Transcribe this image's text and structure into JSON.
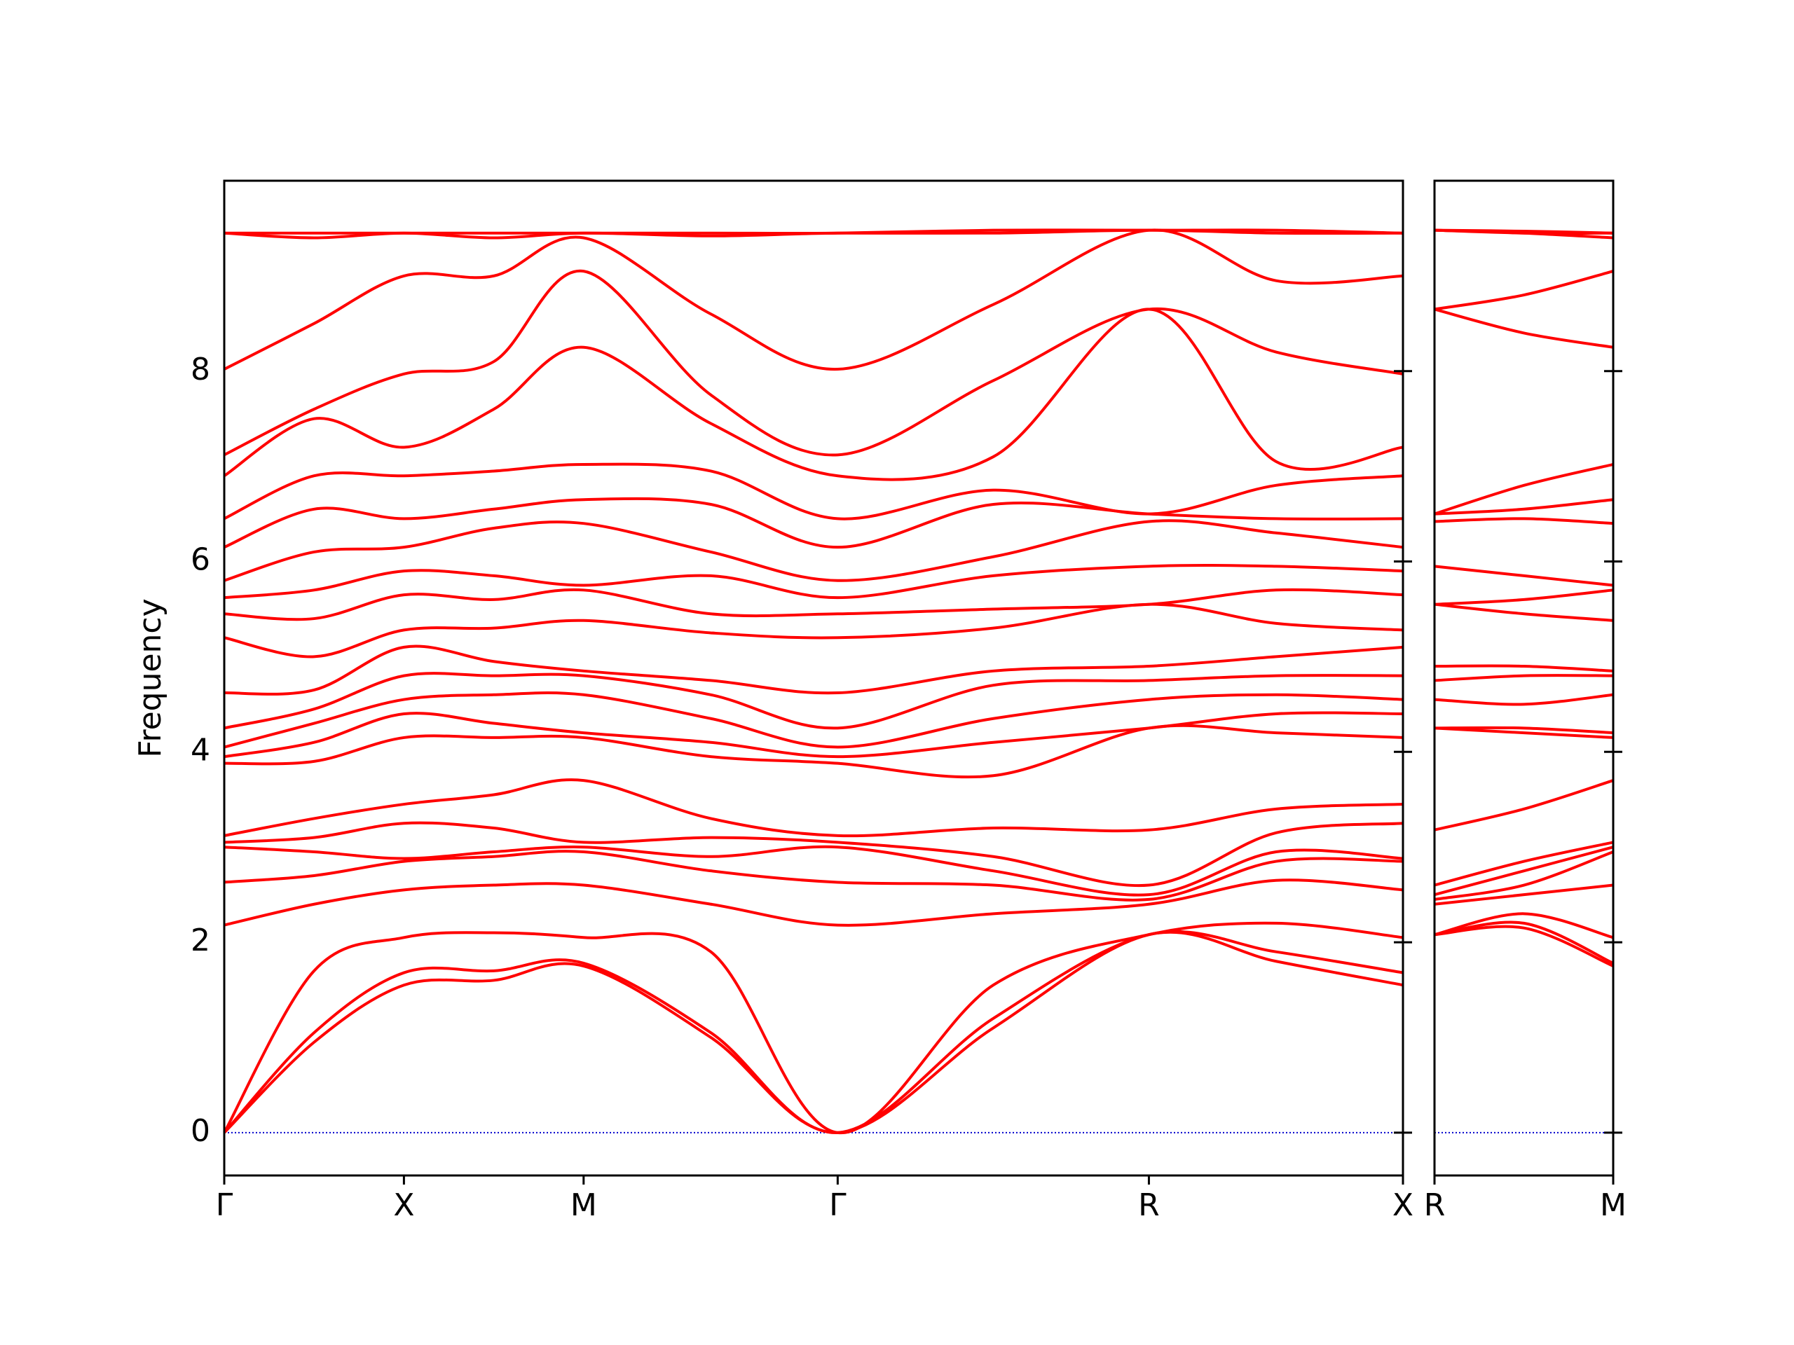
{
  "chart_data": [
    {
      "type": "line",
      "y_label": "Frequency",
      "color": "#ff0000",
      "x": [
        0,
        0.25,
        0.5,
        0.75,
        1.0,
        1.354,
        1.707,
        2.14,
        2.573,
        2.927,
        3.28
      ],
      "xlim": [
        0,
        3.28
      ],
      "xticks": [
        {
          "value": 0,
          "label": "Γ"
        },
        {
          "value": 0.5,
          "label": "X"
        },
        {
          "value": 1.0,
          "label": "M"
        },
        {
          "value": 1.707,
          "label": "Γ"
        },
        {
          "value": 2.573,
          "label": "R"
        },
        {
          "value": 3.28,
          "label": "X"
        }
      ],
      "ylim": [
        -0.45,
        10.0
      ],
      "yticks": [
        0,
        2,
        4,
        6,
        8
      ],
      "y_tick_labels": true,
      "zero_line": {
        "value": 0,
        "color": "#0000cc"
      },
      "series": [
        {
          "values": [
            0,
            0.95,
            1.55,
            1.6,
            1.75,
            1.0,
            0,
            1.1,
            2.08,
            1.8,
            1.55
          ]
        },
        {
          "values": [
            0,
            1.05,
            1.68,
            1.7,
            1.78,
            1.05,
            0,
            1.2,
            2.08,
            1.9,
            1.68
          ]
        },
        {
          "values": [
            0,
            1.7,
            2.05,
            2.1,
            2.05,
            1.9,
            0,
            1.55,
            2.08,
            2.2,
            2.05
          ]
        },
        {
          "values": [
            2.18,
            2.4,
            2.55,
            2.6,
            2.6,
            2.4,
            2.18,
            2.3,
            2.4,
            2.65,
            2.55
          ]
        },
        {
          "values": [
            2.63,
            2.7,
            2.85,
            2.9,
            2.95,
            2.75,
            2.63,
            2.6,
            2.45,
            2.85,
            2.85
          ]
        },
        {
          "values": [
            3.0,
            2.95,
            2.88,
            2.95,
            3.0,
            2.9,
            3.0,
            2.75,
            2.5,
            2.95,
            2.88
          ]
        },
        {
          "values": [
            3.05,
            3.1,
            3.25,
            3.2,
            3.05,
            3.1,
            3.05,
            2.9,
            2.6,
            3.15,
            3.25
          ]
        },
        {
          "values": [
            3.12,
            3.3,
            3.45,
            3.55,
            3.7,
            3.3,
            3.12,
            3.2,
            3.18,
            3.4,
            3.45
          ]
        },
        {
          "values": [
            3.88,
            3.9,
            4.15,
            4.15,
            4.15,
            3.95,
            3.88,
            3.75,
            4.25,
            4.2,
            4.15
          ]
        },
        {
          "values": [
            3.95,
            4.1,
            4.4,
            4.3,
            4.2,
            4.1,
            3.95,
            4.1,
            4.25,
            4.4,
            4.4
          ]
        },
        {
          "values": [
            4.05,
            4.3,
            4.55,
            4.6,
            4.6,
            4.35,
            4.05,
            4.35,
            4.55,
            4.6,
            4.55
          ]
        },
        {
          "values": [
            4.25,
            4.45,
            4.8,
            4.8,
            4.8,
            4.6,
            4.25,
            4.7,
            4.75,
            4.8,
            4.8
          ]
        },
        {
          "values": [
            4.62,
            4.65,
            5.1,
            4.95,
            4.85,
            4.75,
            4.62,
            4.85,
            4.9,
            5.0,
            5.1
          ]
        },
        {
          "values": [
            5.2,
            5.0,
            5.28,
            5.3,
            5.38,
            5.25,
            5.2,
            5.3,
            5.55,
            5.35,
            5.28
          ]
        },
        {
          "values": [
            5.45,
            5.4,
            5.65,
            5.6,
            5.7,
            5.45,
            5.45,
            5.5,
            5.55,
            5.7,
            5.65
          ]
        },
        {
          "values": [
            5.62,
            5.7,
            5.9,
            5.85,
            5.75,
            5.85,
            5.62,
            5.85,
            5.95,
            5.95,
            5.9
          ]
        },
        {
          "values": [
            5.8,
            6.1,
            6.15,
            6.35,
            6.4,
            6.1,
            5.8,
            6.05,
            6.42,
            6.3,
            6.15
          ]
        },
        {
          "values": [
            6.15,
            6.55,
            6.45,
            6.55,
            6.65,
            6.6,
            6.15,
            6.6,
            6.5,
            6.45,
            6.45
          ]
        },
        {
          "values": [
            6.45,
            6.9,
            6.9,
            6.95,
            7.02,
            6.95,
            6.45,
            6.75,
            6.5,
            6.8,
            6.9
          ]
        },
        {
          "values": [
            6.9,
            7.5,
            7.2,
            7.6,
            8.25,
            7.45,
            6.9,
            7.1,
            8.65,
            7.05,
            7.2
          ]
        },
        {
          "values": [
            7.12,
            7.6,
            7.97,
            8.1,
            9.05,
            7.75,
            7.12,
            7.9,
            8.65,
            8.2,
            7.97
          ]
        },
        {
          "values": [
            8.02,
            8.5,
            9.0,
            9.0,
            9.4,
            8.6,
            8.02,
            8.7,
            9.48,
            8.95,
            9.0
          ]
        },
        {
          "values": [
            9.45,
            9.4,
            9.45,
            9.4,
            9.45,
            9.42,
            9.45,
            9.45,
            9.48,
            9.45,
            9.45
          ]
        },
        {
          "values": [
            9.45,
            9.45,
            9.45,
            9.45,
            9.45,
            9.45,
            9.45,
            9.48,
            9.48,
            9.48,
            9.45
          ]
        }
      ]
    },
    {
      "type": "line",
      "color": "#ff0000",
      "x": [
        3.28,
        3.634,
        3.987
      ],
      "xlim": [
        3.28,
        3.987
      ],
      "xticks": [
        {
          "value": 3.28,
          "label": "R"
        },
        {
          "value": 3.987,
          "label": "M"
        }
      ],
      "ylim": [
        -0.45,
        10.0
      ],
      "yticks": [
        0,
        2,
        4,
        6,
        8
      ],
      "y_tick_labels": false,
      "zero_line": {
        "value": 0,
        "color": "#0000cc"
      },
      "series": [
        {
          "values": [
            2.08,
            2.15,
            1.75
          ]
        },
        {
          "values": [
            2.08,
            2.2,
            1.78
          ]
        },
        {
          "values": [
            2.08,
            2.3,
            2.05
          ]
        },
        {
          "values": [
            2.4,
            2.5,
            2.6
          ]
        },
        {
          "values": [
            2.45,
            2.6,
            2.95
          ]
        },
        {
          "values": [
            2.5,
            2.75,
            3.0
          ]
        },
        {
          "values": [
            2.6,
            2.85,
            3.05
          ]
        },
        {
          "values": [
            3.18,
            3.4,
            3.7
          ]
        },
        {
          "values": [
            4.25,
            4.2,
            4.15
          ]
        },
        {
          "values": [
            4.25,
            4.25,
            4.2
          ]
        },
        {
          "values": [
            4.55,
            4.5,
            4.6
          ]
        },
        {
          "values": [
            4.75,
            4.8,
            4.8
          ]
        },
        {
          "values": [
            4.9,
            4.9,
            4.85
          ]
        },
        {
          "values": [
            5.55,
            5.45,
            5.38
          ]
        },
        {
          "values": [
            5.55,
            5.6,
            5.7
          ]
        },
        {
          "values": [
            5.95,
            5.85,
            5.75
          ]
        },
        {
          "values": [
            6.42,
            6.45,
            6.4
          ]
        },
        {
          "values": [
            6.5,
            6.55,
            6.65
          ]
        },
        {
          "values": [
            6.5,
            6.8,
            7.02
          ]
        },
        {
          "values": [
            8.65,
            8.4,
            8.25
          ]
        },
        {
          "values": [
            8.65,
            8.8,
            9.05
          ]
        },
        {
          "values": [
            9.48,
            9.45,
            9.4
          ]
        },
        {
          "values": [
            9.48,
            9.45,
            9.45
          ]
        },
        {
          "values": [
            9.48,
            9.47,
            9.45
          ]
        }
      ]
    }
  ]
}
